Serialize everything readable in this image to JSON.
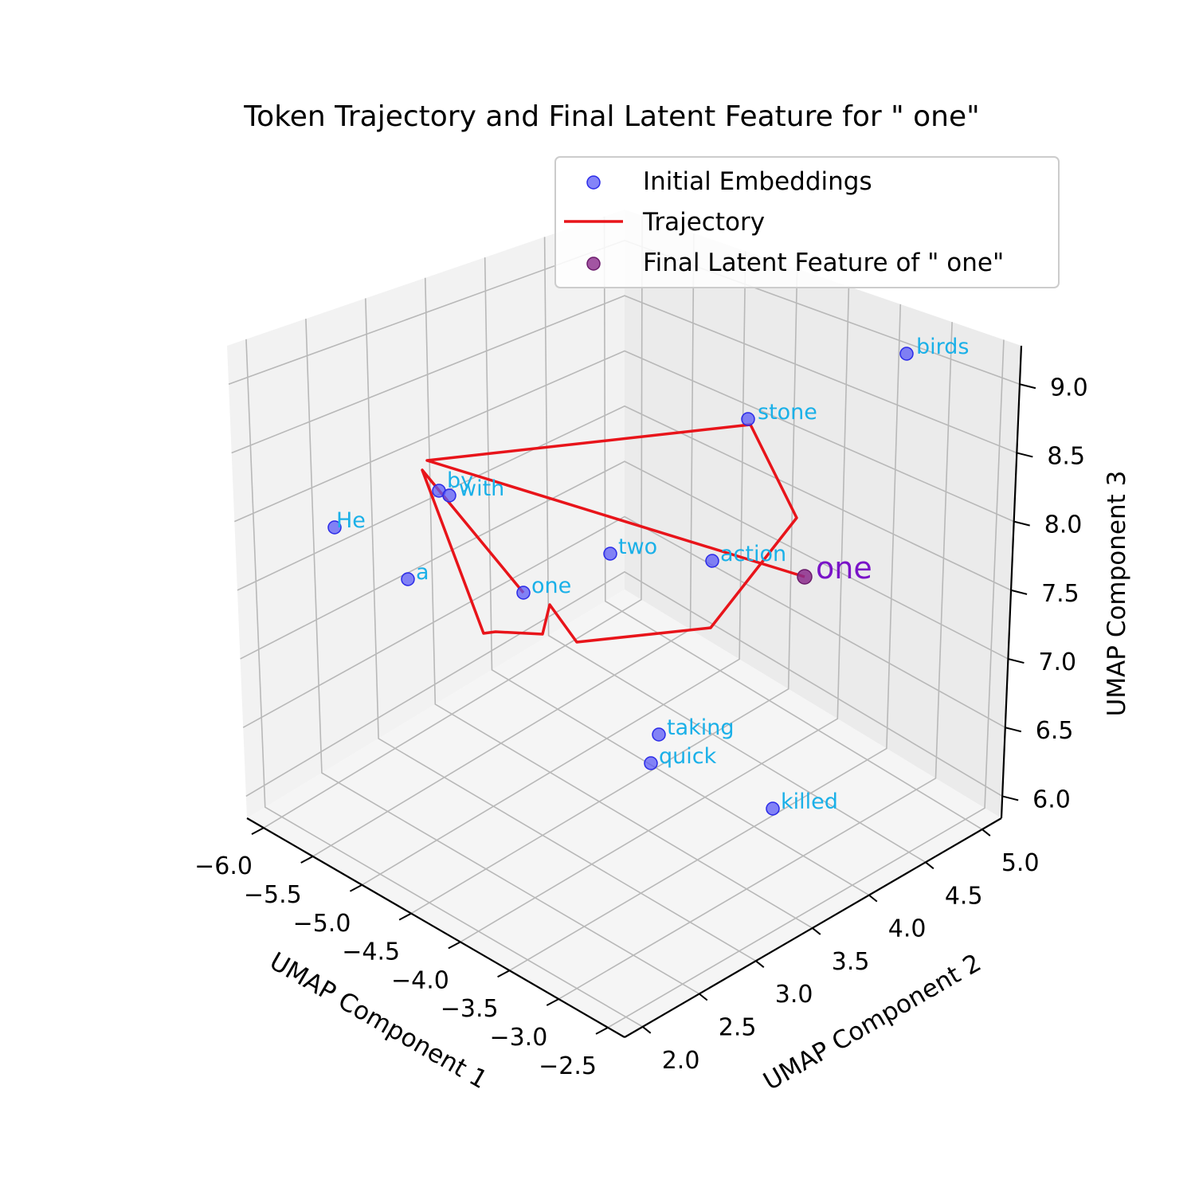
{
  "chart_data": {
    "type": "scatter",
    "projection": "3d",
    "title": "Token Trajectory and Final Latent Feature for \" one\"",
    "xlabel": "UMAP Component 1",
    "ylabel": "UMAP Component 2",
    "zlabel": "UMAP Component 3",
    "x_ticks": [
      "−6.0",
      "−5.5",
      "−5.0",
      "−4.5",
      "−4.0",
      "−3.5",
      "−3.0",
      "−2.5"
    ],
    "y_ticks": [
      "2.0",
      "2.5",
      "3.0",
      "3.5",
      "4.0",
      "4.5",
      "5.0"
    ],
    "z_ticks": [
      "6.0",
      "6.5",
      "7.0",
      "7.5",
      "8.0",
      "8.5",
      "9.0"
    ],
    "grid": true,
    "legend": {
      "position": "top-right",
      "entries": [
        {
          "label": "Initial Embeddings",
          "marker": "circle",
          "color": "#5b5bf5"
        },
        {
          "label": "Trajectory",
          "marker": "line",
          "color": "#e8141a"
        },
        {
          "label": "Final Latent Feature of \" one\"",
          "marker": "circle",
          "color": "#8b2a8b"
        }
      ]
    },
    "series": [
      {
        "name": "Initial Embeddings",
        "color": "#5b5bf5",
        "points": [
          {
            "label": "birds",
            "x": -4.8,
            "y": 4.9,
            "z": 9.1
          },
          {
            "label": "stone",
            "x": -4.9,
            "y": 3.9,
            "z": 8.6
          },
          {
            "label": "by",
            "x": -5.6,
            "y": 2.2,
            "z": 8.3
          },
          {
            "label": "with",
            "x": -5.5,
            "y": 2.2,
            "z": 8.2
          },
          {
            "label": "He",
            "x": -6.0,
            "y": 1.8,
            "z": 7.9
          },
          {
            "label": "two",
            "x": -4.6,
            "y": 2.7,
            "z": 7.4
          },
          {
            "label": "action",
            "x": -4.2,
            "y": 3.3,
            "z": 7.5
          },
          {
            "label": "a",
            "x": -5.4,
            "y": 1.6,
            "z": 7.4
          },
          {
            "label": "one",
            "x": -4.9,
            "y": 1.9,
            "z": 7.1
          },
          {
            "label": "taking",
            "x": -3.3,
            "y": 2.4,
            "z": 6.5
          },
          {
            "label": "quick",
            "x": -3.3,
            "y": 2.3,
            "z": 6.3
          },
          {
            "label": "killed",
            "x": -2.9,
            "y": 3.0,
            "z": 6.1
          }
        ]
      },
      {
        "name": "Trajectory",
        "color": "#e8141a",
        "points": [
          {
            "x": -4.9,
            "y": 1.9,
            "z": 7.1
          },
          {
            "x": -5.7,
            "y": 2.1,
            "z": 8.4
          },
          {
            "x": -4.5,
            "y": 1.5,
            "z": 6.9
          },
          {
            "x": -4.5,
            "y": 1.6,
            "z": 6.9
          },
          {
            "x": -4.2,
            "y": 1.8,
            "z": 7.0
          },
          {
            "x": -4.0,
            "y": 2.2,
            "z": 7.2
          },
          {
            "x": -3.7,
            "y": 2.1,
            "z": 6.9
          },
          {
            "x": -3.1,
            "y": 3.2,
            "z": 7.1
          },
          {
            "x": -3.9,
            "y": 4.2,
            "z": 8.0
          },
          {
            "x": -4.9,
            "y": 3.9,
            "z": 8.6
          },
          {
            "x": -5.6,
            "y": 2.3,
            "z": 8.5
          },
          {
            "x": -4.1,
            "y": 3.9,
            "z": 7.6
          }
        ]
      },
      {
        "name": "Final Latent Feature of \" one\"",
        "color": "#8b2a8b",
        "points": [
          {
            "label": "one",
            "x": -4.1,
            "y": 3.9,
            "z": 7.6
          }
        ]
      }
    ]
  }
}
